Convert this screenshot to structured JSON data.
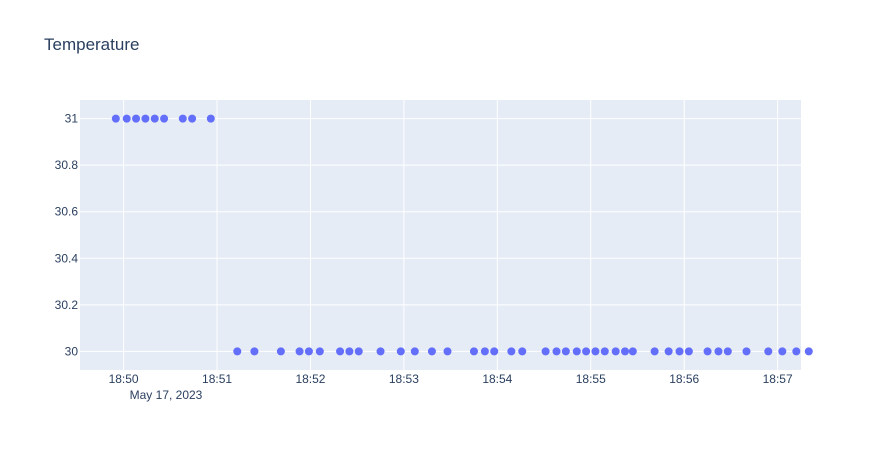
{
  "chart_data": {
    "type": "scatter",
    "title": "Temperature",
    "xlabel": "",
    "ylabel": "",
    "date_label": "May 17, 2023",
    "colors": {
      "plot_bg": "#e5ecf6",
      "grid": "#ffffff",
      "marker": "#636efa",
      "text": "#2a3f5f"
    },
    "grid": true,
    "xlim": [
      "18:49:32",
      "18:57:15"
    ],
    "ylim": [
      29.92,
      31.08
    ],
    "x_ticks": [
      "18:50",
      "18:51",
      "18:52",
      "18:53",
      "18:54",
      "18:55",
      "18:56",
      "18:57"
    ],
    "y_ticks": [
      {
        "value": 30,
        "label": "30"
      },
      {
        "value": 30.2,
        "label": "30.2"
      },
      {
        "value": 30.4,
        "label": "30.4"
      },
      {
        "value": 30.6,
        "label": "30.6"
      },
      {
        "value": 30.8,
        "label": "30.8"
      },
      {
        "value": 31,
        "label": "31"
      }
    ],
    "series": [
      {
        "x": [
          "18:49:55",
          "18:50:02",
          "18:50:08",
          "18:50:14",
          "18:50:20",
          "18:50:26",
          "18:50:38",
          "18:50:44",
          "18:50:56",
          "18:51:13",
          "18:51:24",
          "18:51:41",
          "18:51:53",
          "18:51:59",
          "18:52:06",
          "18:52:19",
          "18:52:25",
          "18:52:31",
          "18:52:45",
          "18:52:58",
          "18:53:07",
          "18:53:18",
          "18:53:28",
          "18:53:45",
          "18:53:52",
          "18:53:58",
          "18:54:09",
          "18:54:16",
          "18:54:31",
          "18:54:38",
          "18:54:44",
          "18:54:51",
          "18:54:57",
          "18:55:03",
          "18:55:09",
          "18:55:16",
          "18:55:22",
          "18:55:27",
          "18:55:41",
          "18:55:50",
          "18:55:57",
          "18:56:03",
          "18:56:15",
          "18:56:22",
          "18:56:28",
          "18:56:40",
          "18:56:54",
          "18:57:03",
          "18:57:12",
          "18:57:20"
        ],
        "y": [
          31,
          31,
          31,
          31,
          31,
          31,
          31,
          31,
          31,
          30,
          30,
          30,
          30,
          30,
          30,
          30,
          30,
          30,
          30,
          30,
          30,
          30,
          30,
          30,
          30,
          30,
          30,
          30,
          30,
          30,
          30,
          30,
          30,
          30,
          30,
          30,
          30,
          30,
          30,
          30,
          30,
          30,
          30,
          30,
          30,
          30,
          30,
          30,
          30,
          30
        ]
      }
    ]
  }
}
